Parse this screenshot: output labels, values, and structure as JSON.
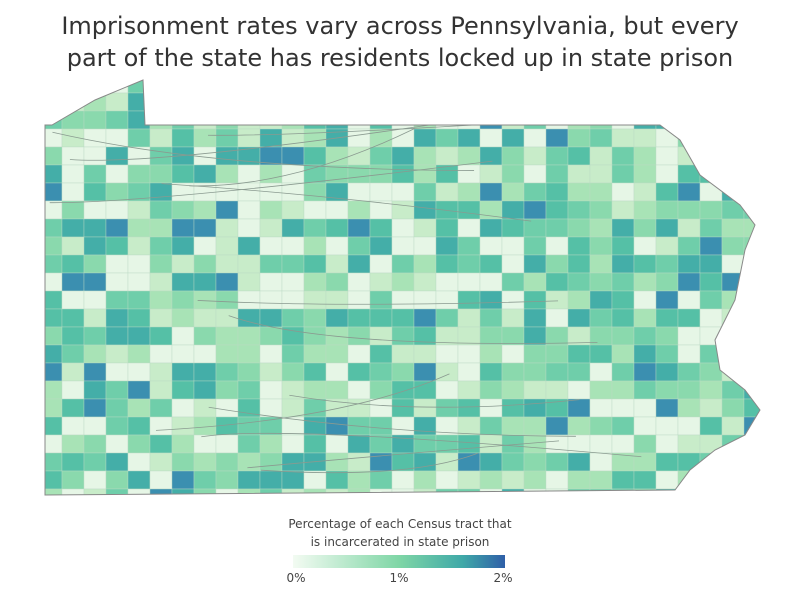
{
  "title": {
    "lines": [
      "Imprisonment rates vary across Pennsylvania, but every",
      "part of the state has residents locked up in state prison"
    ]
  },
  "legend": {
    "title_lines": [
      "Percentage of each Census tract that",
      "is incarcerated in state prison"
    ],
    "labels": [
      "0%",
      "1%",
      "2%"
    ]
  }
}
